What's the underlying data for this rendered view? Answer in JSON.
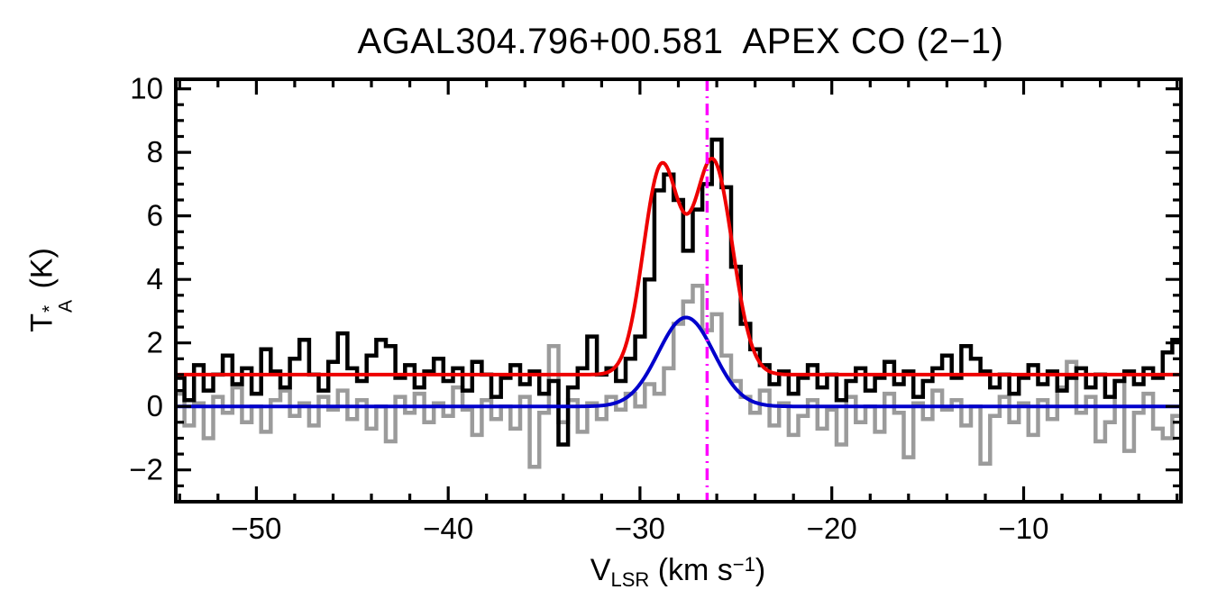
{
  "title": "AGAL304.796+00.581  APEX CO (2−1)",
  "chart_data": {
    "type": "line",
    "title": "AGAL304.796+00.581  APEX CO (2−1)",
    "xlabel": "V_LSR (km s^-1)",
    "ylabel": "T_A^* (K)",
    "labels": {
      "y": {
        "base": "T",
        "sup": "*",
        "sub": "A",
        "rest": " (K)"
      },
      "x": {
        "base": "V",
        "sub": "LSR",
        "mid": " (km s",
        "sup": "−1",
        "end": ")"
      }
    },
    "xlim": [
      -54.2,
      -1.8
    ],
    "ylim": [
      -3.0,
      10.3
    ],
    "grid": false,
    "legend": "none",
    "x_major_ticks": [
      -50,
      -40,
      -30,
      -20,
      -10
    ],
    "x_tick_labels": [
      "−50",
      "−40",
      "−30",
      "−20",
      "−10"
    ],
    "x_minor_step": 2,
    "y_major_ticks": [
      -2,
      0,
      2,
      4,
      6,
      8,
      10
    ],
    "y_tick_labels": [
      "−2",
      "0",
      "2",
      "4",
      "6",
      "8",
      "10"
    ],
    "y_minor_step": 0.5,
    "marker_line": {
      "x": -26.5,
      "color": "#ff00ff",
      "style": "dash-dot"
    },
    "series": [
      {
        "name": "gray-spectrum-histogram",
        "color": "#9b9b9b",
        "style": "histogram",
        "x_start": -54,
        "x_step": 0.5,
        "values": [
          0.4,
          -0.6,
          0.1,
          -1.0,
          0.3,
          -0.2,
          0.6,
          -0.5,
          0.0,
          -0.8,
          0.2,
          0.5,
          -0.3,
          0.1,
          -0.6,
          0.3,
          -0.1,
          0.5,
          -0.4,
          0.2,
          -0.7,
          0.0,
          -1.1,
          0.3,
          -0.2,
          0.4,
          -0.5,
          0.1,
          -0.3,
          0.6,
          -0.1,
          -0.9,
          0.2,
          -0.4,
          0.0,
          -0.7,
          0.3,
          -1.9,
          -0.2,
          1.9,
          -0.5,
          0.2,
          -0.8,
          0.1,
          -0.4,
          0.3,
          -0.1,
          0.4,
          0.0,
          0.7,
          0.4,
          1.2,
          2.6,
          3.3,
          3.8,
          2.4,
          2.9,
          1.6,
          0.8,
          0.3,
          -0.2,
          0.5,
          -0.6,
          0.1,
          -0.9,
          -0.3,
          0.2,
          -0.7,
          -0.1,
          -1.2,
          0.3,
          -0.5,
          0.0,
          -0.8,
          0.4,
          -0.2,
          -1.6,
          0.1,
          -0.4,
          0.5,
          -0.1,
          0.2,
          -0.6,
          0.0,
          -1.8,
          -0.3,
          0.3,
          -0.5,
          0.1,
          -0.9,
          0.2,
          -0.4,
          0.6,
          1.4,
          -0.2,
          0.3,
          -1.1,
          -0.5,
          0.8,
          -1.4,
          -0.2,
          0.4,
          -0.7,
          -1.0,
          -0.3
        ]
      },
      {
        "name": "black-spectrum-histogram",
        "color": "#000000",
        "style": "histogram",
        "x_start": -54,
        "x_step": 0.5,
        "values": [
          0.9,
          0.2,
          1.3,
          0.5,
          1.0,
          1.6,
          0.7,
          1.2,
          0.4,
          1.8,
          1.1,
          0.6,
          1.5,
          2.1,
          1.0,
          0.5,
          1.4,
          2.3,
          1.2,
          0.8,
          1.6,
          2.1,
          1.9,
          0.9,
          1.3,
          0.6,
          1.1,
          1.5,
          0.8,
          1.2,
          0.5,
          1.4,
          1.0,
          0.3,
          0.9,
          1.3,
          0.7,
          1.1,
          0.4,
          0.8,
          -1.2,
          0.6,
          1.2,
          2.2,
          1.0,
          1.2,
          0.8,
          1.5,
          2.2,
          4.0,
          6.8,
          7.3,
          6.5,
          4.9,
          6.2,
          7.0,
          8.4,
          6.9,
          4.4,
          2.6,
          1.8,
          1.3,
          0.7,
          1.1,
          0.4,
          0.9,
          1.3,
          0.6,
          1.0,
          0.2,
          0.8,
          1.2,
          0.5,
          0.9,
          1.4,
          0.7,
          1.1,
          0.3,
          0.8,
          1.2,
          1.6,
          0.9,
          1.9,
          1.5,
          1.1,
          0.6,
          1.0,
          0.4,
          0.9,
          1.3,
          0.7,
          1.1,
          0.5,
          0.9,
          1.2,
          0.6,
          1.0,
          0.3,
          0.8,
          1.1,
          0.7,
          1.2,
          0.9,
          1.7,
          2.1
        ]
      },
      {
        "name": "blue-gaussian-fit",
        "color": "#0000cc",
        "style": "curve",
        "baseline": 0.0,
        "components": [
          {
            "center": -27.6,
            "amplitude": 2.8,
            "fwhm": 3.4
          }
        ]
      },
      {
        "name": "red-gaussian-fit",
        "color": "#ee0000",
        "style": "curve",
        "baseline": 1.0,
        "components": [
          {
            "center": -28.9,
            "amplitude": 6.45,
            "fwhm": 2.2
          },
          {
            "center": -26.2,
            "amplitude": 6.7,
            "fwhm": 2.4
          }
        ]
      }
    ]
  }
}
